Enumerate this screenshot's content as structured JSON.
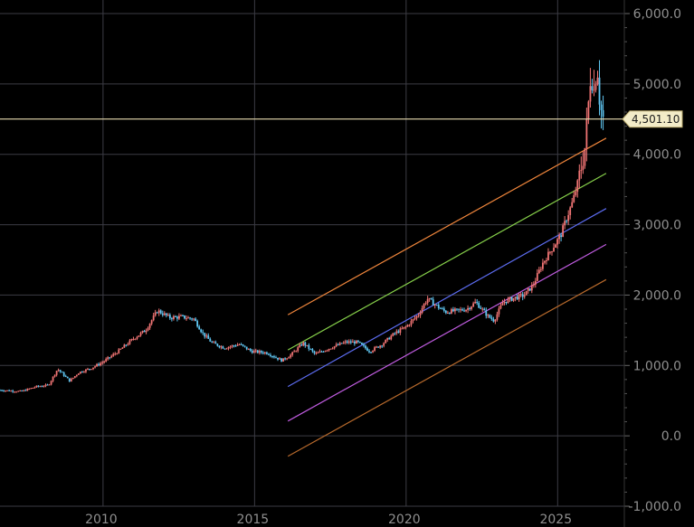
{
  "chart_data": {
    "type": "candlestick",
    "title": "",
    "xlabel": "",
    "ylabel": "",
    "x_ticks": [
      2010,
      2015,
      2020,
      2025
    ],
    "y_ticks": [
      -1000,
      0,
      1000,
      2000,
      3000,
      4000,
      5000,
      6000
    ],
    "y_tick_labels": [
      "-1,000.0",
      "0.0",
      "1,000.0",
      "2,000.0",
      "3,000.0",
      "4,000.0",
      "5,000.0",
      "6,000.0"
    ],
    "xlim": [
      2006.6,
      2027.2
    ],
    "ylim": [
      -1000,
      6000
    ],
    "grid": true,
    "y_axis_position": "right",
    "current_price": {
      "value": 4501.1,
      "label": "4,501.10",
      "line_color": "#e8dcb0",
      "tag_color": "#f3ecc8"
    },
    "candle_colors": {
      "up": "#f07474",
      "down": "#5fc6f2"
    },
    "channel_lines": [
      {
        "x": [
          2016.1,
          2026.6
        ],
        "y": [
          1720,
          4230
        ],
        "color": "#f0863c"
      },
      {
        "x": [
          2016.1,
          2026.6
        ],
        "y": [
          1220,
          3730
        ],
        "color": "#86d04a"
      },
      {
        "x": [
          2016.1,
          2026.6
        ],
        "y": [
          700,
          3230
        ],
        "color": "#5c6cf0"
      },
      {
        "x": [
          2016.1,
          2026.6
        ],
        "y": [
          210,
          2720
        ],
        "color": "#c05ce0"
      },
      {
        "x": [
          2016.1,
          2026.6
        ],
        "y": [
          -290,
          2220
        ],
        "color": "#b86a2c"
      }
    ],
    "price_path": [
      [
        2006.6,
        650
      ],
      [
        2007.3,
        630
      ],
      [
        2007.8,
        700
      ],
      [
        2008.2,
        720
      ],
      [
        2008.5,
        950
      ],
      [
        2008.9,
        780
      ],
      [
        2009.2,
        900
      ],
      [
        2009.6,
        960
      ],
      [
        2010.0,
        1050
      ],
      [
        2010.5,
        1200
      ],
      [
        2011.0,
        1380
      ],
      [
        2011.4,
        1500
      ],
      [
        2011.8,
        1780
      ],
      [
        2012.2,
        1680
      ],
      [
        2012.6,
        1690
      ],
      [
        2013.0,
        1660
      ],
      [
        2013.3,
        1450
      ],
      [
        2013.6,
        1320
      ],
      [
        2014.0,
        1250
      ],
      [
        2014.5,
        1300
      ],
      [
        2014.9,
        1200
      ],
      [
        2015.4,
        1180
      ],
      [
        2015.9,
        1070
      ],
      [
        2016.2,
        1150
      ],
      [
        2016.6,
        1320
      ],
      [
        2017.0,
        1160
      ],
      [
        2017.5,
        1250
      ],
      [
        2018.0,
        1330
      ],
      [
        2018.4,
        1330
      ],
      [
        2018.8,
        1200
      ],
      [
        2019.2,
        1300
      ],
      [
        2019.6,
        1450
      ],
      [
        2020.0,
        1550
      ],
      [
        2020.4,
        1720
      ],
      [
        2020.7,
        1950
      ],
      [
        2021.0,
        1850
      ],
      [
        2021.3,
        1760
      ],
      [
        2021.7,
        1780
      ],
      [
        2022.0,
        1800
      ],
      [
        2022.3,
        1900
      ],
      [
        2022.7,
        1700
      ],
      [
        2022.9,
        1640
      ],
      [
        2023.2,
        1900
      ],
      [
        2023.5,
        1950
      ],
      [
        2023.9,
        2000
      ],
      [
        2024.2,
        2150
      ],
      [
        2024.5,
        2450
      ],
      [
        2024.8,
        2650
      ],
      [
        2025.1,
        2850
      ],
      [
        2025.3,
        3100
      ],
      [
        2025.5,
        3330
      ],
      [
        2025.7,
        3650
      ],
      [
        2025.9,
        4100
      ],
      [
        2026.0,
        4600
      ],
      [
        2026.1,
        5250
      ],
      [
        2026.2,
        4900
      ],
      [
        2026.3,
        5350
      ],
      [
        2026.4,
        4700
      ],
      [
        2026.5,
        4501
      ]
    ]
  }
}
